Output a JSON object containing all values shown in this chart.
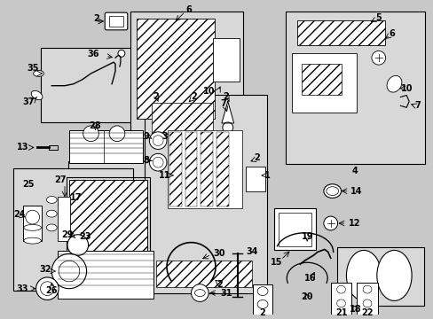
{
  "bg_color": "#c8c8c8",
  "fig_bg": "#c8c8c8",
  "boxes": {
    "pipe_35_36": [
      0.085,
      0.555,
      0.215,
      0.175
    ],
    "hvac_3": [
      0.295,
      0.645,
      0.265,
      0.295
    ],
    "assembly_4": [
      0.66,
      0.595,
      0.325,
      0.36
    ],
    "seals_23": [
      0.15,
      0.235,
      0.215,
      0.185
    ],
    "evap_24_27": [
      0.022,
      0.1,
      0.28,
      0.285
    ],
    "main_1": [
      0.33,
      0.21,
      0.285,
      0.465
    ],
    "vent_18": [
      0.78,
      0.028,
      0.205,
      0.16
    ]
  }
}
